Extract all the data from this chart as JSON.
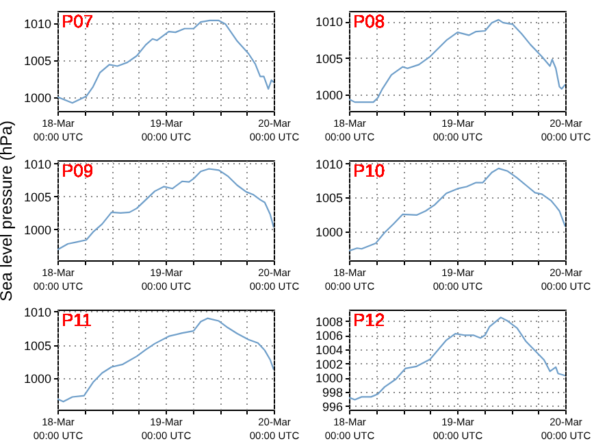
{
  "chart_data": [
    {
      "type": "line",
      "title": "P07",
      "color": "#6f9fca",
      "grid": true,
      "xlim": [
        "--03-18T00:00",
        "--03-20T00:00"
      ],
      "ylim": [
        998.1,
        1011.7
      ],
      "yticks": [
        1000,
        1005,
        1010
      ],
      "xticks": [
        {
          "value": "--03-18T00:00",
          "label": "18-Mar\n00:00 UTC"
        },
        {
          "value": "--03-18T06:00",
          "label": null
        },
        {
          "value": "--03-18T12:00",
          "label": null
        },
        {
          "value": "--03-18T18:00",
          "label": null
        },
        {
          "value": "--03-19T00:00",
          "label": "19-Mar\n00:00 UTC"
        },
        {
          "value": "--03-19T06:00",
          "label": null
        },
        {
          "value": "--03-19T12:00",
          "label": null
        },
        {
          "value": "--03-19T18:00",
          "label": null
        },
        {
          "value": "--03-20T00:00",
          "label": "20-Mar\n00:00 UTC"
        }
      ],
      "x": [
        "--03-18T00:00",
        "--03-18T03:18",
        "--03-18T06:24",
        "--03-18T07:54",
        "--03-18T09:24",
        "--03-18T11:30",
        "--03-18T13:18",
        "--03-18T15:30",
        "--03-18T17:36",
        "--03-18T19:36",
        "--03-18T21:06",
        "--03-18T22:06",
        "--03-19T00:42",
        "--03-19T02:12",
        "--03-19T04:12",
        "--03-19T06:12",
        "--03-19T07:48",
        "--03-19T09:48",
        "--03-19T11:48",
        "--03-19T13:18",
        "--03-19T15:54",
        "--03-19T18:24",
        "--03-19T19:54",
        "--03-19T21:00",
        "--03-19T21:48",
        "--03-19T22:48",
        "--03-19T23:30",
        "--03-20T00:00"
      ],
      "values": [
        1000.0,
        999.2,
        1000.1,
        1001.4,
        1003.3,
        1004.4,
        1004.2,
        1004.7,
        1005.6,
        1007.1,
        1007.9,
        1007.7,
        1008.9,
        1008.8,
        1009.3,
        1009.3,
        1010.2,
        1010.4,
        1010.4,
        1009.9,
        1007.6,
        1005.9,
        1004.5,
        1002.8,
        1002.8,
        1001.1,
        1002.3,
        1002.0
      ]
    },
    {
      "type": "line",
      "title": "P08",
      "color": "#6f9fca",
      "grid": true,
      "xlim": [
        "--03-18T00:00",
        "--03-20T00:00"
      ],
      "ylim": [
        997.8,
        1011.4
      ],
      "yticks": [
        1000,
        1005,
        1010
      ],
      "xticks": [
        {
          "value": "--03-18T00:00",
          "label": "18-Mar\n00:00 UTC"
        },
        {
          "value": "--03-18T06:00",
          "label": null
        },
        {
          "value": "--03-18T12:00",
          "label": null
        },
        {
          "value": "--03-18T18:00",
          "label": null
        },
        {
          "value": "--03-19T00:00",
          "label": "19-Mar\n00:00 UTC"
        },
        {
          "value": "--03-19T06:00",
          "label": null
        },
        {
          "value": "--03-19T12:00",
          "label": null
        },
        {
          "value": "--03-19T18:00",
          "label": null
        },
        {
          "value": "--03-20T00:00",
          "label": "20-Mar\n00:00 UTC"
        }
      ],
      "x": [
        "--03-18T00:00",
        "--03-18T01:18",
        "--03-18T05:24",
        "--03-18T06:24",
        "--03-18T07:24",
        "--03-18T09:24",
        "--03-18T11:54",
        "--03-18T13:00",
        "--03-18T15:30",
        "--03-18T18:00",
        "--03-18T21:36",
        "--03-19T00:06",
        "--03-19T02:36",
        "--03-19T04:12",
        "--03-19T06:12",
        "--03-19T07:42",
        "--03-19T09:12",
        "--03-19T10:12",
        "--03-19T12:18",
        "--03-19T14:18",
        "--03-19T16:18",
        "--03-19T18:48",
        "--03-19T20:36",
        "--03-19T21:06",
        "--03-19T21:54",
        "--03-19T22:42",
        "--03-19T23:12",
        "--03-20T00:00"
      ],
      "values": [
        999.4,
        999.0,
        999.0,
        999.6,
        1000.8,
        1002.7,
        1003.8,
        1003.6,
        1004.1,
        1005.2,
        1007.4,
        1008.5,
        1008.1,
        1008.6,
        1008.7,
        1009.8,
        1010.2,
        1009.8,
        1009.6,
        1008.3,
        1006.8,
        1005.2,
        1003.9,
        1004.8,
        1003.6,
        1001.1,
        1000.8,
        1001.4
      ]
    },
    {
      "type": "line",
      "title": "P09",
      "ylabel": "Sea level pressure (hPa)",
      "color": "#6f9fca",
      "grid": true,
      "xlim": [
        "--03-18T00:00",
        "--03-20T00:00"
      ],
      "ylim": [
        995.3,
        1010.5
      ],
      "yticks": [
        1000,
        1005,
        1010
      ],
      "xticks": [
        {
          "value": "--03-18T00:00",
          "label": "18-Mar\n00:00 UTC"
        },
        {
          "value": "--03-18T06:00",
          "label": null
        },
        {
          "value": "--03-18T12:00",
          "label": null
        },
        {
          "value": "--03-18T18:00",
          "label": null
        },
        {
          "value": "--03-19T00:00",
          "label": "19-Mar\n00:00 UTC"
        },
        {
          "value": "--03-19T06:00",
          "label": null
        },
        {
          "value": "--03-19T12:00",
          "label": null
        },
        {
          "value": "--03-19T18:00",
          "label": null
        },
        {
          "value": "--03-20T00:00",
          "label": "20-Mar\n00:00 UTC"
        }
      ],
      "x": [
        "--03-18T00:00",
        "--03-18T02:18",
        "--03-18T04:24",
        "--03-18T06:24",
        "--03-18T07:54",
        "--03-18T09:54",
        "--03-18T12:00",
        "--03-18T14:00",
        "--03-18T16:00",
        "--03-18T17:36",
        "--03-18T19:36",
        "--03-18T21:36",
        "--03-18T23:36",
        "--03-19T01:30",
        "--03-19T03:42",
        "--03-19T05:12",
        "--03-19T06:12",
        "--03-19T07:48",
        "--03-19T09:36",
        "--03-19T11:48",
        "--03-19T13:48",
        "--03-19T15:54",
        "--03-19T17:54",
        "--03-19T19:24",
        "--03-19T21:00",
        "--03-19T22:00",
        "--03-19T23:12",
        "--03-20T00:00"
      ],
      "values": [
        996.9,
        997.8,
        998.1,
        998.4,
        999.6,
        1000.8,
        1002.6,
        1002.5,
        1002.6,
        1003.2,
        1004.5,
        1005.8,
        1006.5,
        1006.2,
        1007.3,
        1007.2,
        1007.7,
        1008.8,
        1009.2,
        1009.0,
        1008.1,
        1006.7,
        1005.7,
        1005.3,
        1004.5,
        1004.1,
        1002.3,
        1000.3
      ]
    },
    {
      "type": "line",
      "title": "P10",
      "color": "#6f9fca",
      "grid": true,
      "xlim": [
        "--03-18T00:00",
        "--03-20T00:00"
      ],
      "ylim": [
        995.7,
        1010.5
      ],
      "yticks": [
        1000,
        1005,
        1010
      ],
      "xticks": [
        {
          "value": "--03-18T00:00",
          "label": "18-Mar\n00:00 UTC"
        },
        {
          "value": "--03-18T06:00",
          "label": null
        },
        {
          "value": "--03-18T12:00",
          "label": null
        },
        {
          "value": "--03-18T18:00",
          "label": null
        },
        {
          "value": "--03-19T00:00",
          "label": "19-Mar\n00:00 UTC"
        },
        {
          "value": "--03-19T06:00",
          "label": null
        },
        {
          "value": "--03-19T12:00",
          "label": null
        },
        {
          "value": "--03-19T18:00",
          "label": null
        },
        {
          "value": "--03-20T00:00",
          "label": "20-Mar\n00:00 UTC"
        }
      ],
      "x": [
        "--03-18T00:00",
        "--03-18T01:48",
        "--03-18T02:48",
        "--03-18T05:54",
        "--03-18T07:54",
        "--03-18T09:54",
        "--03-18T11:54",
        "--03-18T15:00",
        "--03-18T17:00",
        "--03-18T19:00",
        "--03-18T21:36",
        "--03-19T00:06",
        "--03-19T02:06",
        "--03-19T04:12",
        "--03-19T05:42",
        "--03-19T07:42",
        "--03-19T09:12",
        "--03-19T11:12",
        "--03-19T13:18",
        "--03-19T15:18",
        "--03-19T17:18",
        "--03-19T18:48",
        "--03-19T20:54",
        "--03-19T21:54",
        "--03-19T22:42",
        "--03-20T00:00"
      ],
      "values": [
        997.1,
        997.5,
        997.4,
        998.2,
        999.8,
        1001.1,
        1002.5,
        1002.4,
        1003.0,
        1003.9,
        1005.6,
        1006.3,
        1006.6,
        1007.2,
        1007.2,
        1008.7,
        1009.3,
        1008.9,
        1007.9,
        1006.8,
        1005.7,
        1005.5,
        1004.5,
        1003.7,
        1003.0,
        1000.7
      ]
    },
    {
      "type": "line",
      "title": "P11",
      "color": "#6f9fca",
      "grid": true,
      "xlim": [
        "--03-18T00:00",
        "--03-20T00:00"
      ],
      "ylim": [
        995.3,
        1010.3
      ],
      "yticks": [
        1000,
        1005,
        1010
      ],
      "xticks": [
        {
          "value": "--03-18T00:00",
          "label": "18-Mar\n00:00 UTC"
        },
        {
          "value": "--03-18T06:00",
          "label": null
        },
        {
          "value": "--03-18T12:00",
          "label": null
        },
        {
          "value": "--03-18T18:00",
          "label": null
        },
        {
          "value": "--03-19T00:00",
          "label": "19-Mar\n00:00 UTC"
        },
        {
          "value": "--03-19T06:00",
          "label": null
        },
        {
          "value": "--03-19T12:00",
          "label": null
        },
        {
          "value": "--03-19T18:00",
          "label": null
        },
        {
          "value": "--03-20T00:00",
          "label": "20-Mar\n00:00 UTC"
        }
      ],
      "x": [
        "--03-18T00:00",
        "--03-18T01:18",
        "--03-18T03:18",
        "--03-18T05:54",
        "--03-18T07:54",
        "--03-18T09:54",
        "--03-18T12:00",
        "--03-18T14:30",
        "--03-18T17:36",
        "--03-18T19:36",
        "--03-18T21:36",
        "--03-19T00:42",
        "--03-19T03:42",
        "--03-19T06:12",
        "--03-19T07:48",
        "--03-19T09:18",
        "--03-19T11:48",
        "--03-19T13:48",
        "--03-19T15:54",
        "--03-19T18:24",
        "--03-19T20:30",
        "--03-19T22:00",
        "--03-19T23:12",
        "--03-20T00:00"
      ],
      "values": [
        996.9,
        996.5,
        997.2,
        997.4,
        999.4,
        1000.8,
        1001.7,
        1002.1,
        1003.3,
        1004.3,
        1005.2,
        1006.3,
        1006.8,
        1007.1,
        1008.5,
        1009.0,
        1008.6,
        1007.6,
        1006.7,
        1005.8,
        1005.3,
        1004.2,
        1002.8,
        1001.3
      ]
    },
    {
      "type": "line",
      "title": "P12",
      "color": "#6f9fca",
      "grid": true,
      "xlim": [
        "--03-18T00:00",
        "--03-20T00:00"
      ],
      "ylim": [
        995.5,
        1009.6
      ],
      "yticks": [
        996,
        998,
        1000,
        1002,
        1004,
        1006,
        1008
      ],
      "xticks": [
        {
          "value": "--03-18T00:00",
          "label": "18-Mar\n00:00 UTC"
        },
        {
          "value": "--03-18T06:00",
          "label": null
        },
        {
          "value": "--03-18T12:00",
          "label": null
        },
        {
          "value": "--03-18T18:00",
          "label": null
        },
        {
          "value": "--03-19T00:00",
          "label": "19-Mar\n00:00 UTC"
        },
        {
          "value": "--03-19T06:00",
          "label": null
        },
        {
          "value": "--03-19T12:00",
          "label": null
        },
        {
          "value": "--03-19T18:00",
          "label": null
        },
        {
          "value": "--03-20T00:00",
          "label": "20-Mar\n00:00 UTC"
        }
      ],
      "x": [
        "--03-18T00:00",
        "--03-18T01:18",
        "--03-18T02:48",
        "--03-18T04:54",
        "--03-18T06:24",
        "--03-18T07:54",
        "--03-18T10:24",
        "--03-18T12:30",
        "--03-18T15:00",
        "--03-18T18:00",
        "--03-18T21:36",
        "--03-18T23:36",
        "--03-19T01:36",
        "--03-19T03:36",
        "--03-19T05:12",
        "--03-19T06:12",
        "--03-19T07:12",
        "--03-19T09:42",
        "--03-19T11:12",
        "--03-19T13:18",
        "--03-19T15:18",
        "--03-19T17:18",
        "--03-19T19:18",
        "--03-19T20:36",
        "--03-19T21:54",
        "--03-19T22:24",
        "--03-20T00:00"
      ],
      "values": [
        997.2,
        996.9,
        997.3,
        997.3,
        997.7,
        998.7,
        999.8,
        1001.3,
        1001.6,
        1002.6,
        1005.3,
        1006.2,
        1006.0,
        1006.0,
        1005.6,
        1006.0,
        1007.2,
        1008.5,
        1008.0,
        1007.0,
        1005.1,
        1003.8,
        1002.5,
        1000.9,
        1001.5,
        1000.6,
        1000.3
      ]
    }
  ]
}
